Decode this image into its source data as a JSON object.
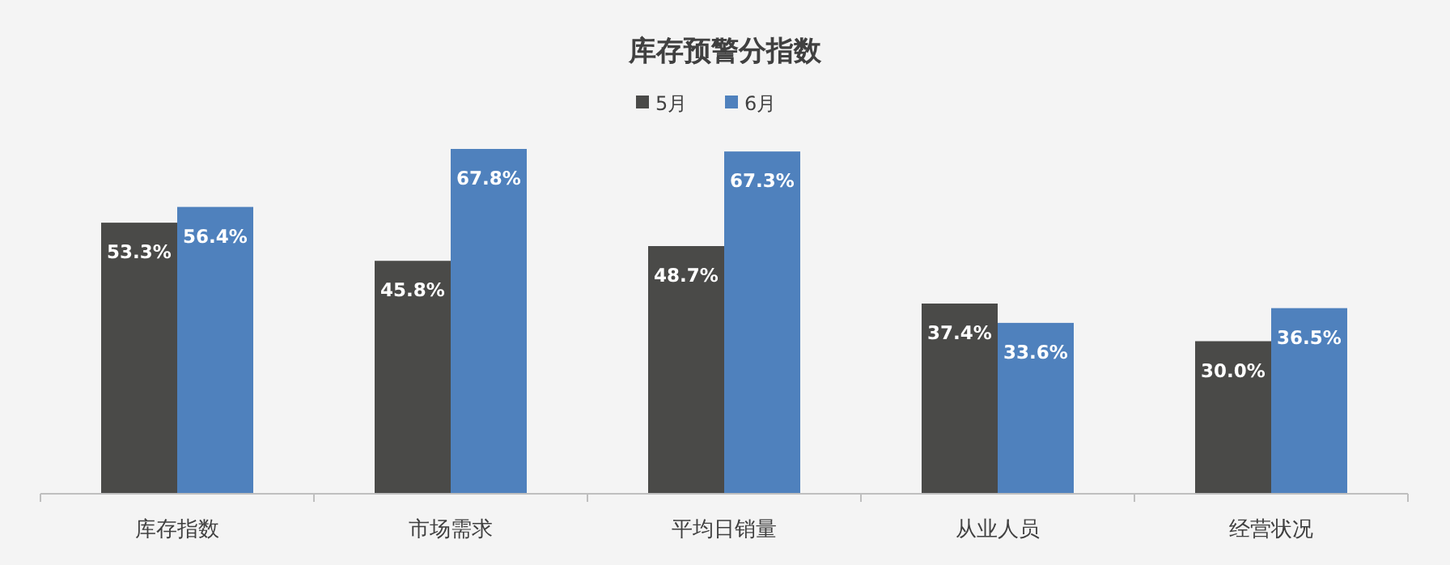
{
  "chart_data": {
    "type": "bar",
    "title": "库存预警分指数",
    "legend": "top",
    "categories": [
      "库存指数",
      "市场需求",
      "平均日销量",
      "从业人员",
      "经营状况"
    ],
    "series": [
      {
        "name": "5月",
        "color": "#4a4a48",
        "values": [
          53.3,
          45.8,
          48.7,
          37.4,
          30.0
        ],
        "value_labels": [
          "53.3%",
          "45.8%",
          "48.7%",
          "37.4%",
          "30.0%"
        ]
      },
      {
        "name": "6月",
        "color": "#4f81bd",
        "values": [
          56.4,
          67.8,
          67.3,
          33.6,
          36.5
        ],
        "value_labels": [
          "56.4%",
          "67.8%",
          "67.3%",
          "33.6%",
          "36.5%"
        ]
      }
    ]
  }
}
